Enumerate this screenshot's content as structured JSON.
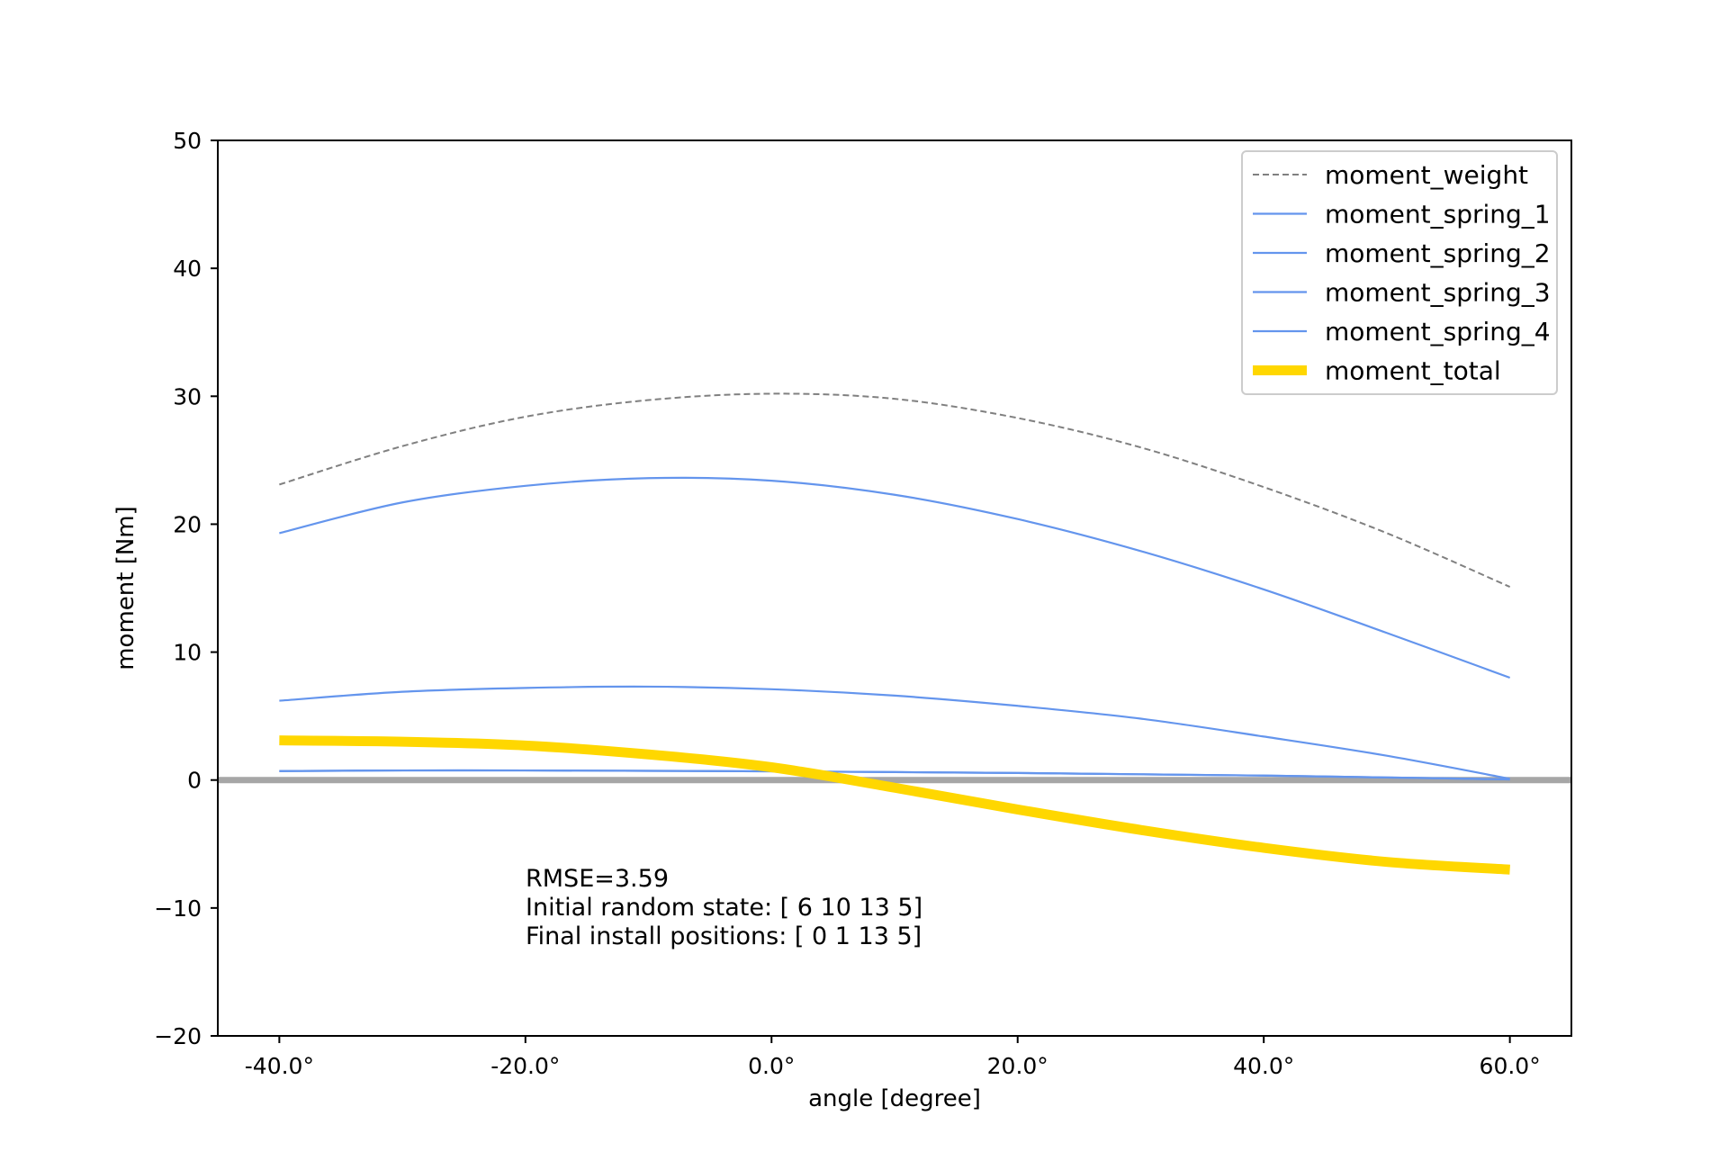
{
  "chart_data": {
    "type": "line",
    "title": "",
    "xlabel": "angle [degree]",
    "ylabel": "moment [Nm]",
    "xlim": [
      -45,
      65
    ],
    "ylim": [
      -20,
      50
    ],
    "grid": false,
    "legend_position": "top-right",
    "x_ticks": [
      {
        "value": -40,
        "label": "-40.0°"
      },
      {
        "value": -20,
        "label": "-20.0°"
      },
      {
        "value": 0,
        "label": "0.0°"
      },
      {
        "value": 20,
        "label": "20.0°"
      },
      {
        "value": 40,
        "label": "40.0°"
      },
      {
        "value": 60,
        "label": "60.0°"
      }
    ],
    "y_ticks": [
      {
        "value": 50,
        "label": "50"
      },
      {
        "value": 40,
        "label": "40"
      },
      {
        "value": 30,
        "label": "30"
      },
      {
        "value": 20,
        "label": "20"
      },
      {
        "value": 10,
        "label": "10"
      },
      {
        "value": 0,
        "label": "0"
      },
      {
        "value": -10,
        "label": "−10"
      },
      {
        "value": -20,
        "label": "−20"
      }
    ],
    "x": [
      -40,
      -30,
      -20,
      -10,
      0,
      10,
      20,
      30,
      40,
      50,
      60
    ],
    "series": [
      {
        "name": "moment_weight",
        "color": "#808080",
        "style": "dashed",
        "values": [
          23.1,
          26.1,
          28.4,
          29.7,
          30.2,
          29.8,
          28.3,
          26.0,
          22.9,
          19.3,
          15.1
        ]
      },
      {
        "name": "moment_spring_1",
        "color": "#6495ed",
        "style": "solid",
        "values": [
          19.3,
          21.7,
          23.0,
          23.6,
          23.4,
          22.3,
          20.4,
          17.9,
          14.9,
          11.5,
          8.0
        ]
      },
      {
        "name": "moment_spring_2",
        "color": "#6495ed",
        "style": "solid",
        "values": [
          6.2,
          6.9,
          7.2,
          7.3,
          7.1,
          6.6,
          5.8,
          4.8,
          3.4,
          1.9,
          0.1
        ]
      },
      {
        "name": "moment_spring_3",
        "color": "#6495ed",
        "style": "solid",
        "values": [
          0.7,
          0.75,
          0.75,
          0.72,
          0.68,
          0.62,
          0.55,
          0.45,
          0.35,
          0.2,
          0.05
        ]
      },
      {
        "name": "moment_spring_4",
        "color": "#6495ed",
        "style": "solid",
        "values": [
          0.7,
          0.75,
          0.75,
          0.72,
          0.68,
          0.62,
          0.55,
          0.45,
          0.35,
          0.2,
          0.05
        ]
      },
      {
        "name": "moment_total",
        "color": "#ffd700",
        "style": "thick",
        "values": [
          3.1,
          3.0,
          2.7,
          2.0,
          1.0,
          -0.6,
          -2.3,
          -3.9,
          -5.3,
          -6.4,
          -7.0
        ]
      }
    ],
    "reference_line": {
      "y": 0,
      "color": "#a6a6a6"
    },
    "annotation": [
      "RMSE=3.59",
      "Initial random state: [ 6 10 13  5]",
      "Final install positions: [ 0  1 13  5]"
    ]
  }
}
